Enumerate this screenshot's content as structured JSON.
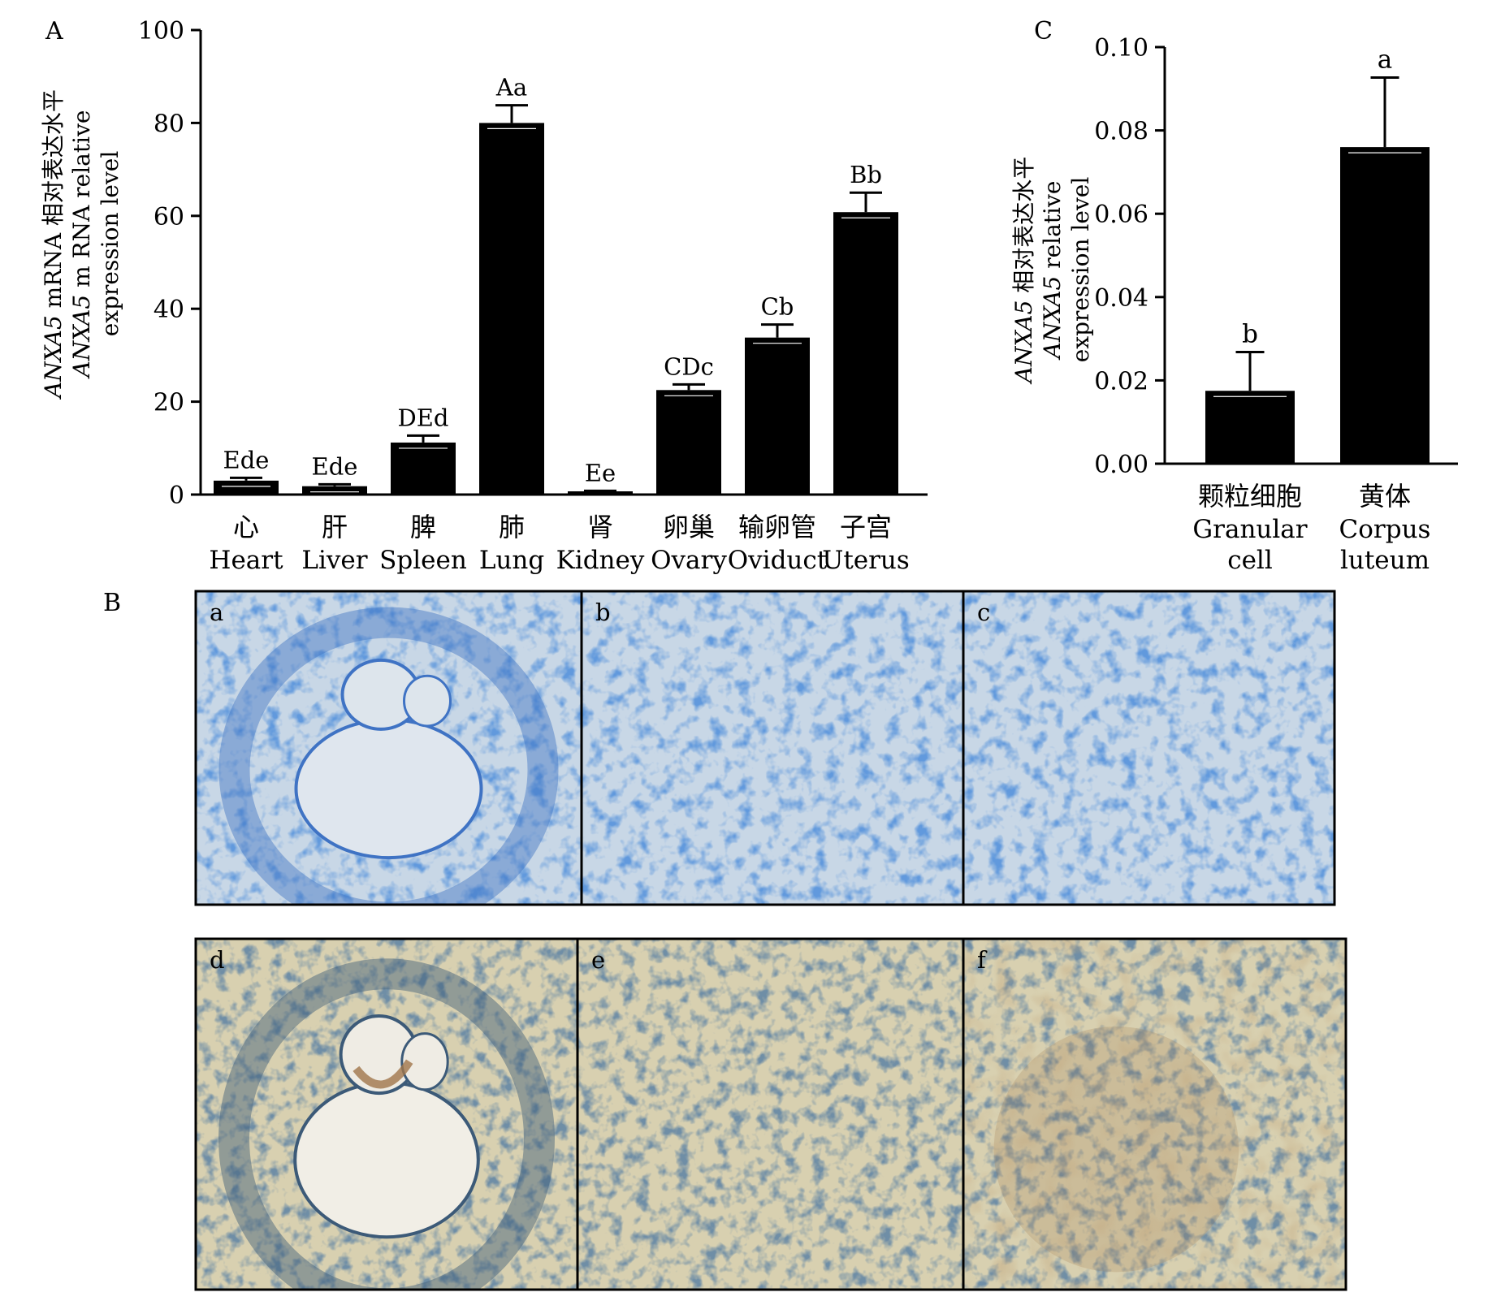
{
  "panel_labels": {
    "A": "A",
    "B": "B",
    "C": "C"
  },
  "chart_data": [
    {
      "id": "A",
      "type": "bar",
      "ylim": [
        0,
        100
      ],
      "yticks": [
        0,
        20,
        40,
        60,
        80,
        100
      ],
      "ylabel_lines": [
        {
          "italic": "ANXA5",
          "rest": " mRNA 相对表达水平"
        },
        {
          "italic": "ANXA5",
          "rest": " m RNA relative"
        },
        {
          "italic": "",
          "rest": "expression level"
        }
      ],
      "categories": [
        {
          "cn": "心",
          "en": "Heart"
        },
        {
          "cn": "肝",
          "en": "Liver"
        },
        {
          "cn": "脾",
          "en": "Spleen"
        },
        {
          "cn": "肺",
          "en": "Lung"
        },
        {
          "cn": "肾",
          "en": "Kidney"
        },
        {
          "cn": "卵巢",
          "en": "Ovary"
        },
        {
          "cn": "输卵管",
          "en": "Oviduct"
        },
        {
          "cn": "子宫",
          "en": "Uterus"
        }
      ],
      "values": [
        3.0,
        1.8,
        11.2,
        80.0,
        0.5,
        22.5,
        33.8,
        60.8
      ],
      "errors": [
        0.6,
        0.4,
        1.5,
        3.8,
        0.3,
        1.2,
        2.8,
        4.2
      ],
      "annotations": [
        "Ede",
        "Ede",
        "DEd",
        "Aa",
        "Ee",
        "CDc",
        "Cb",
        "Bb"
      ]
    },
    {
      "id": "C",
      "type": "bar",
      "ylim": [
        0,
        0.1
      ],
      "yticks": [
        "0.00",
        "0.02",
        "0.04",
        "0.06",
        "0.08",
        "0.10"
      ],
      "ylabel_lines": [
        {
          "italic": "ANXA5",
          "rest": " 相对表达水平"
        },
        {
          "italic": "ANXA5",
          "rest": " relative"
        },
        {
          "italic": "",
          "rest": "expression level"
        }
      ],
      "categories": [
        {
          "cn": "颗粒细胞",
          "en": [
            "Granular",
            "cell"
          ]
        },
        {
          "cn": "黄体",
          "en": [
            "Corpus",
            "luteum"
          ]
        }
      ],
      "values": [
        0.0175,
        0.076
      ],
      "errors": [
        0.0093,
        0.0167
      ],
      "annotations": [
        "b",
        "a"
      ]
    }
  ],
  "micrographs": [
    {
      "label": "a",
      "stain": "negative",
      "tissue": "follicle"
    },
    {
      "label": "b",
      "stain": "negative",
      "tissue": "granular"
    },
    {
      "label": "c",
      "stain": "negative",
      "tissue": "luteum"
    },
    {
      "label": "d",
      "stain": "positive",
      "tissue": "follicle"
    },
    {
      "label": "e",
      "stain": "positive",
      "tissue": "granular"
    },
    {
      "label": "f",
      "stain": "positive",
      "tissue": "luteum"
    }
  ],
  "colors": {
    "bar": "#000000",
    "negative_bg": "#c8d7e6",
    "negative_cell": "#3f73c4",
    "positive_bg": "#d8d0b0",
    "positive_cell": "#3c5a78",
    "positive_brown": "#a0764a"
  }
}
